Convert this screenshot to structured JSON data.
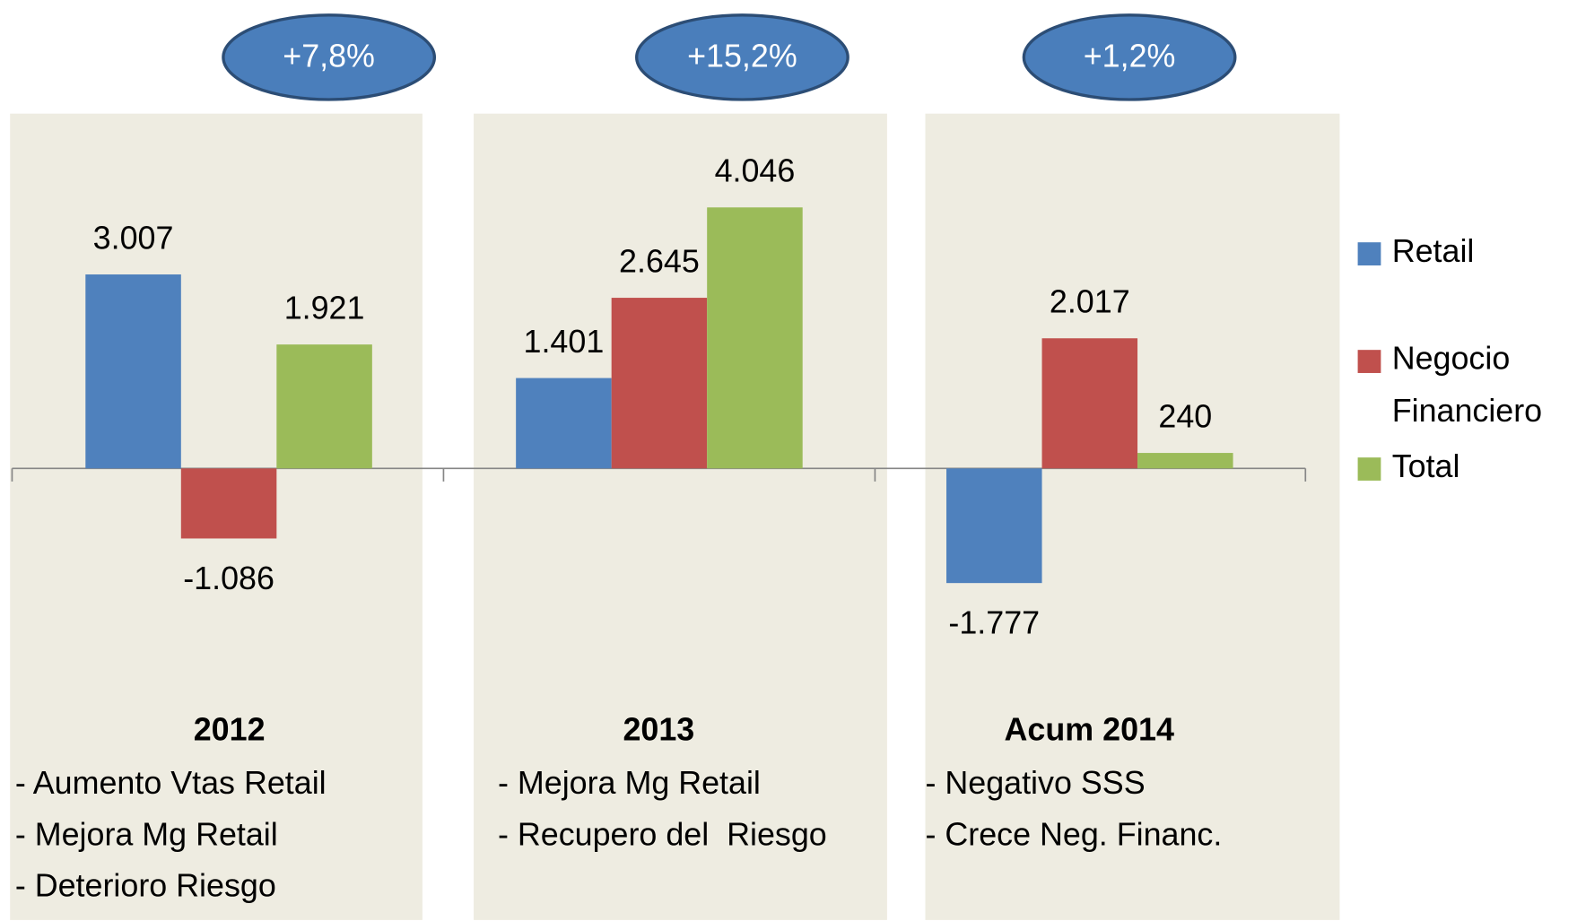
{
  "chart_data": {
    "type": "bar",
    "categories": [
      "2012",
      "2013",
      "Acum 2014"
    ],
    "series": [
      {
        "name": "Retail",
        "color": "#4f81bd",
        "values": [
          3007,
          1401,
          -1777
        ],
        "value_labels": [
          "3.007",
          "1.401",
          "-1.777"
        ]
      },
      {
        "name": "Negocio Financiero",
        "color": "#c0504d",
        "values": [
          -1086,
          2645,
          2017
        ],
        "value_labels": [
          "-1.086",
          "2.645",
          "2.017"
        ]
      },
      {
        "name": "Total",
        "color": "#9bbb59",
        "values": [
          1921,
          4046,
          240
        ],
        "value_labels": [
          "1.921",
          "4.046",
          "240"
        ]
      }
    ],
    "ylim": [
      -7000,
      5500
    ],
    "annotations": [
      "+7,8%",
      "+15,2%",
      "+1,2%"
    ],
    "descriptions": [
      [
        "- Aumento Vtas Retail",
        "- Mejora Mg Retail",
        "- Deterioro Riesgo"
      ],
      [
        "- Mejora Mg Retail",
        "- Recupero del  Riesgo"
      ],
      [
        "- Negativo SSS",
        "- Crece Neg. Financ."
      ]
    ],
    "legend": "right"
  }
}
